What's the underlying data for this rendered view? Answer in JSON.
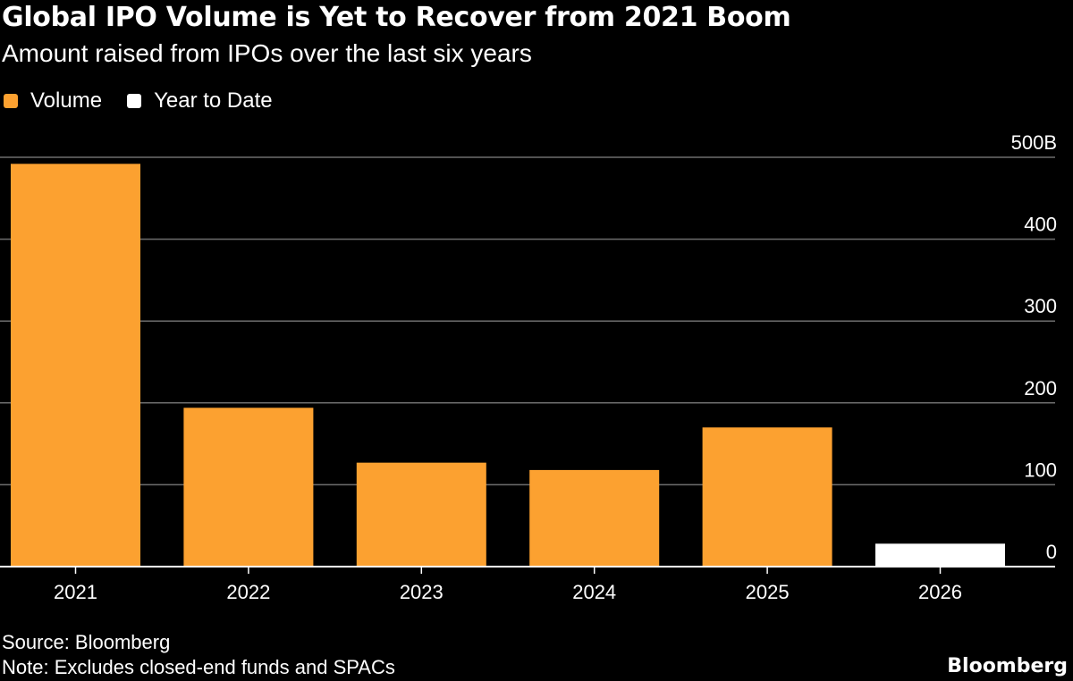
{
  "header": {
    "title": "Global IPO Volume is Yet to Recover from 2021 Boom",
    "subtitle": "Amount raised from IPOs over the last six years"
  },
  "legend": [
    {
      "label": "Volume",
      "color": "#fca130"
    },
    {
      "label": "Year to Date",
      "color": "#ffffff"
    }
  ],
  "colors": {
    "volume": "#fca130",
    "ytd": "#ffffff",
    "grid": "#6e6e6e",
    "axis": "#ffffff"
  },
  "chart_data": {
    "type": "bar",
    "title": "Global IPO Volume is Yet to Recover from 2021 Boom",
    "subtitle": "Amount raised from IPOs over the last six years",
    "categories": [
      "2021",
      "2022",
      "2023",
      "2024",
      "2025",
      "2026"
    ],
    "series": [
      {
        "name": "Volume",
        "values": [
          492,
          194,
          127,
          118,
          170,
          null
        ]
      },
      {
        "name": "Year to Date",
        "values": [
          null,
          null,
          null,
          null,
          null,
          28
        ]
      }
    ],
    "ylim": [
      0,
      500
    ],
    "yticks": [
      0,
      100,
      200,
      300,
      400,
      500
    ],
    "ytick_labels": [
      "0",
      "100",
      "200",
      "300",
      "400",
      "500B"
    ],
    "y_axis_side": "right",
    "grid": true,
    "legend_position": "top-left",
    "xlabel": "",
    "ylabel": ""
  },
  "footer": {
    "source": "Source: Bloomberg",
    "note": "Note: Excludes closed-end funds and SPACs",
    "brand": "Bloomberg"
  }
}
